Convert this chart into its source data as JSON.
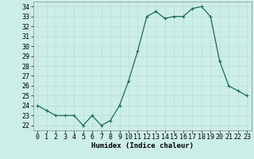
{
  "x": [
    0,
    1,
    2,
    3,
    4,
    5,
    6,
    7,
    8,
    9,
    10,
    11,
    12,
    13,
    14,
    15,
    16,
    17,
    18,
    19,
    20,
    21,
    22,
    23
  ],
  "y": [
    24,
    23.5,
    23,
    23,
    23,
    22,
    23,
    22,
    22.5,
    24,
    26.5,
    29.5,
    33,
    33.5,
    32.8,
    33,
    33,
    33.8,
    34,
    33,
    28.5,
    26,
    25.5,
    25
  ],
  "xlabel": "Humidex (Indice chaleur)",
  "ylim_min": 21.5,
  "ylim_max": 34.5,
  "xlim_min": -0.5,
  "xlim_max": 23.5,
  "yticks": [
    22,
    23,
    24,
    25,
    26,
    27,
    28,
    29,
    30,
    31,
    32,
    33,
    34
  ],
  "xticks": [
    0,
    1,
    2,
    3,
    4,
    5,
    6,
    7,
    8,
    9,
    10,
    11,
    12,
    13,
    14,
    15,
    16,
    17,
    18,
    19,
    20,
    21,
    22,
    23
  ],
  "line_color": "#1a6b5a",
  "marker": "+",
  "bg_color": "#cceee8",
  "grid_color": "#b8ddd6",
  "label_fontsize": 6.5,
  "tick_fontsize": 6
}
